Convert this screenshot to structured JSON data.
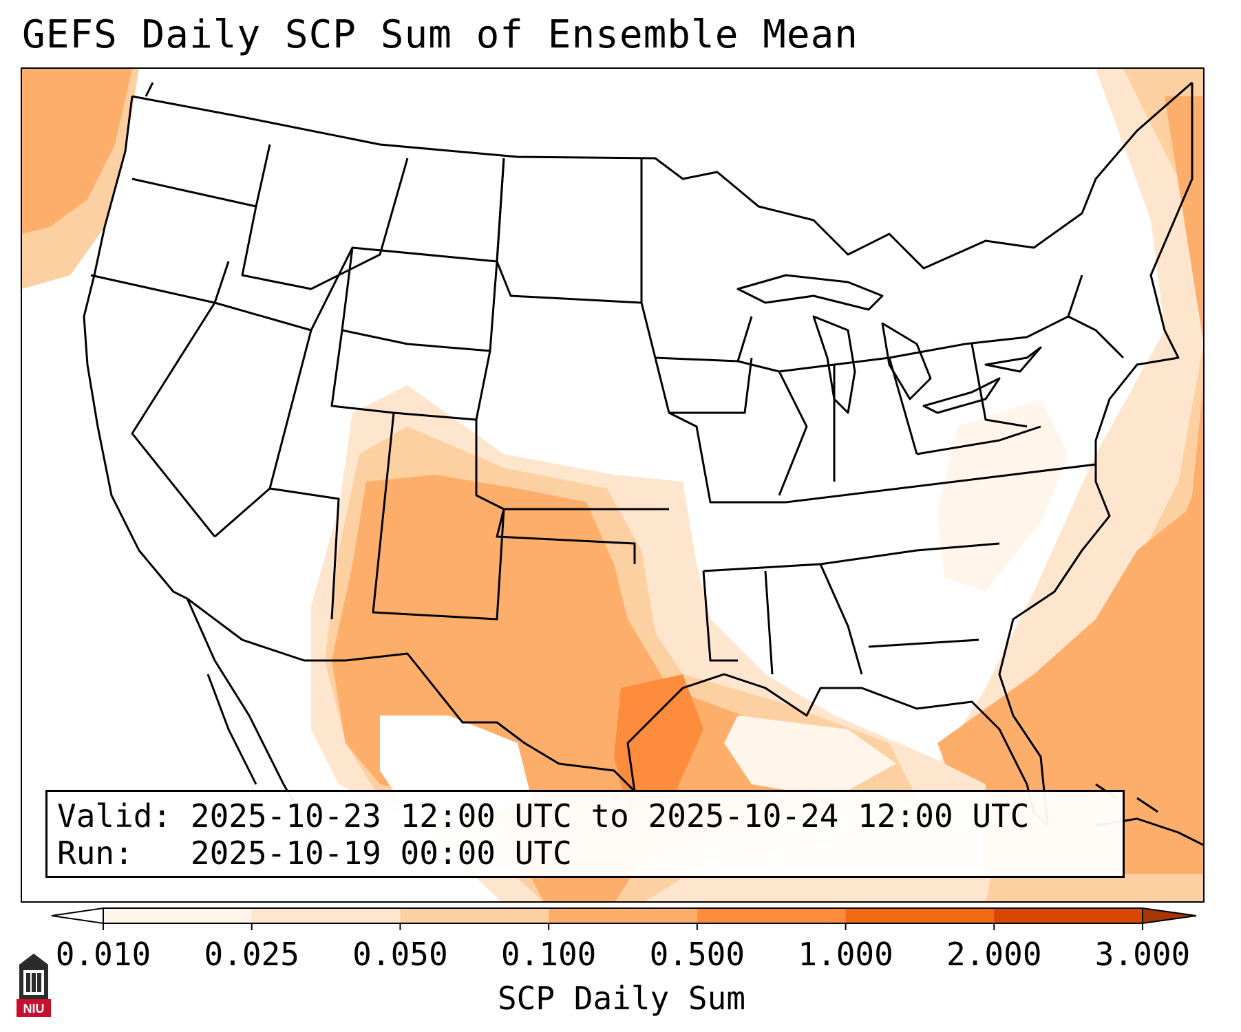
{
  "title": "GEFS Daily SCP Sum of Ensemble Mean",
  "info": {
    "valid_label": "Valid:",
    "valid_value": "2025-10-23 12:00 UTC to 2025-10-24 12:00 UTC",
    "run_label": "Run:",
    "run_value": "2025-10-19 00:00 UTC"
  },
  "colorbar": {
    "label": "SCP Daily Sum",
    "ticks": [
      "0.010",
      "0.025",
      "0.050",
      "0.100",
      "0.500",
      "1.000",
      "2.000",
      "3.000"
    ],
    "colors": [
      "#fff5eb",
      "#fee6ce",
      "#fdd0a2",
      "#fdae6b",
      "#fd8d3c",
      "#f16913",
      "#d94801"
    ],
    "under_color": "#ffffff",
    "over_color": "#a63603"
  },
  "logo": {
    "text": "NIU",
    "color": "#c8102e"
  },
  "map": {
    "projection": "CONUS regional",
    "field": "SCP daily sum, GEFS ensemble mean"
  }
}
